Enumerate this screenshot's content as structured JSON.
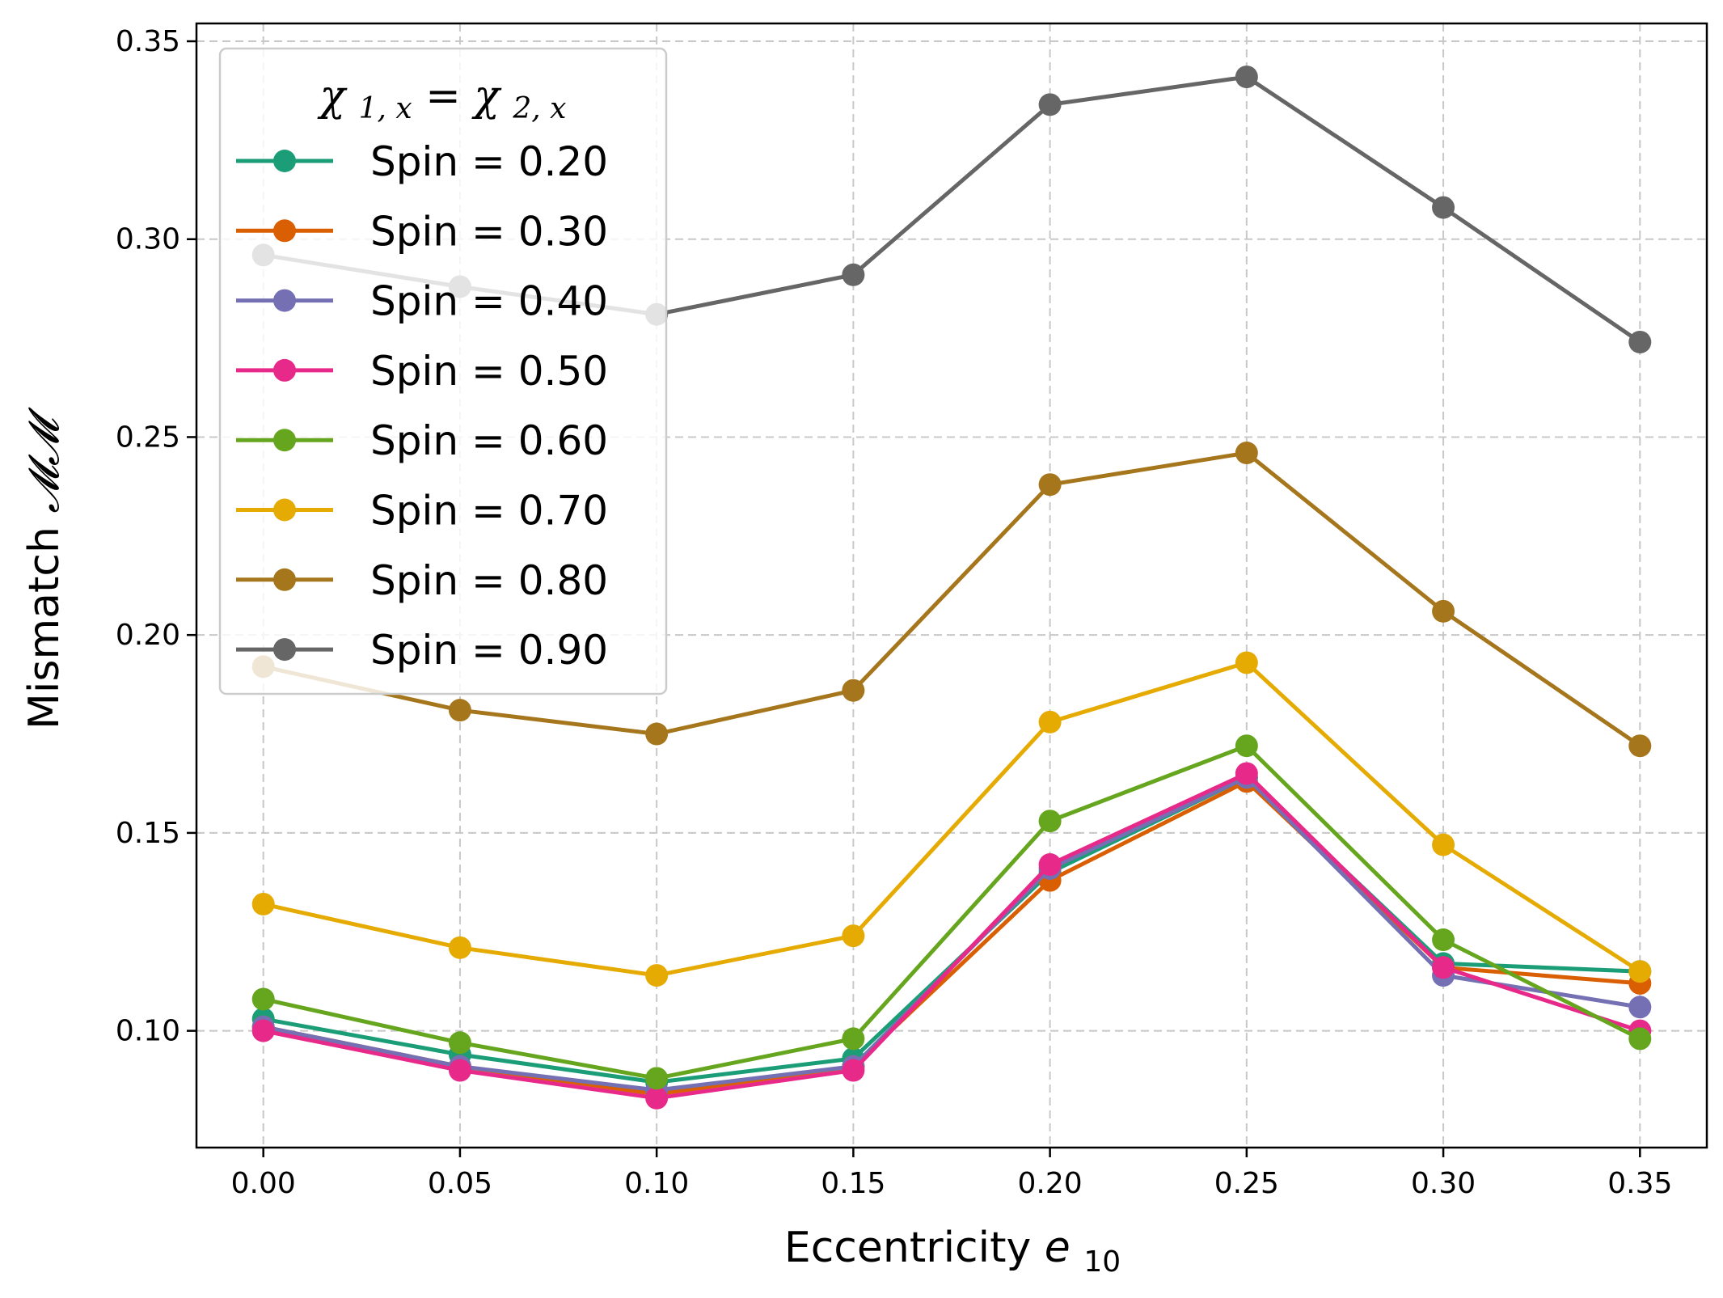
{
  "chart_data": {
    "type": "line",
    "title": "",
    "xlabel": "Eccentricity",
    "xlabel_symbol": "e",
    "xlabel_subscript": "10",
    "ylabel": "Mismatch",
    "ylabel_symbol": "𝓜𝓜",
    "x": [
      0.0,
      0.05,
      0.1,
      0.15,
      0.2,
      0.25,
      0.3,
      0.35
    ],
    "x_tick_labels": [
      "0.00",
      "0.05",
      "0.10",
      "0.15",
      "0.20",
      "0.25",
      "0.30",
      "0.35"
    ],
    "xlim": [
      -0.017,
      0.367
    ],
    "y_ticks": [
      0.1,
      0.15,
      0.2,
      0.25,
      0.3,
      0.35
    ],
    "y_tick_labels": [
      "0.10",
      "0.15",
      "0.20",
      "0.25",
      "0.30",
      "0.35"
    ],
    "ylim": [
      0.0705,
      0.3545
    ],
    "grid": true,
    "legend": {
      "placement": "top-left",
      "title_main": "χ",
      "title_sub1": "1, x",
      "title_eq": " = ",
      "title_sub2": "2, x"
    },
    "series": [
      {
        "name": "Spin = 0.20",
        "color": "#1b9e77",
        "values": [
          0.103,
          0.094,
          0.087,
          0.093,
          0.14,
          0.164,
          0.117,
          0.115
        ]
      },
      {
        "name": "Spin = 0.30",
        "color": "#d95f02",
        "values": [
          0.101,
          0.091,
          0.084,
          0.091,
          0.138,
          0.163,
          0.116,
          0.112
        ]
      },
      {
        "name": "Spin = 0.40",
        "color": "#7570b3",
        "values": [
          0.101,
          0.091,
          0.085,
          0.091,
          0.141,
          0.164,
          0.114,
          0.106
        ]
      },
      {
        "name": "Spin = 0.50",
        "color": "#e7298a",
        "values": [
          0.1,
          0.09,
          0.083,
          0.09,
          0.142,
          0.165,
          0.116,
          0.1
        ]
      },
      {
        "name": "Spin = 0.60",
        "color": "#66a61e",
        "values": [
          0.108,
          0.097,
          0.088,
          0.098,
          0.153,
          0.172,
          0.123,
          0.098
        ]
      },
      {
        "name": "Spin = 0.70",
        "color": "#e6ab02",
        "values": [
          0.132,
          0.121,
          0.114,
          0.124,
          0.178,
          0.193,
          0.147,
          0.115
        ]
      },
      {
        "name": "Spin = 0.80",
        "color": "#a6761d",
        "values": [
          0.192,
          0.181,
          0.175,
          0.186,
          0.238,
          0.246,
          0.206,
          0.172
        ]
      },
      {
        "name": "Spin = 0.90",
        "color": "#666666",
        "values": [
          0.296,
          0.288,
          0.281,
          0.291,
          0.334,
          0.341,
          0.308,
          0.274
        ]
      }
    ]
  }
}
